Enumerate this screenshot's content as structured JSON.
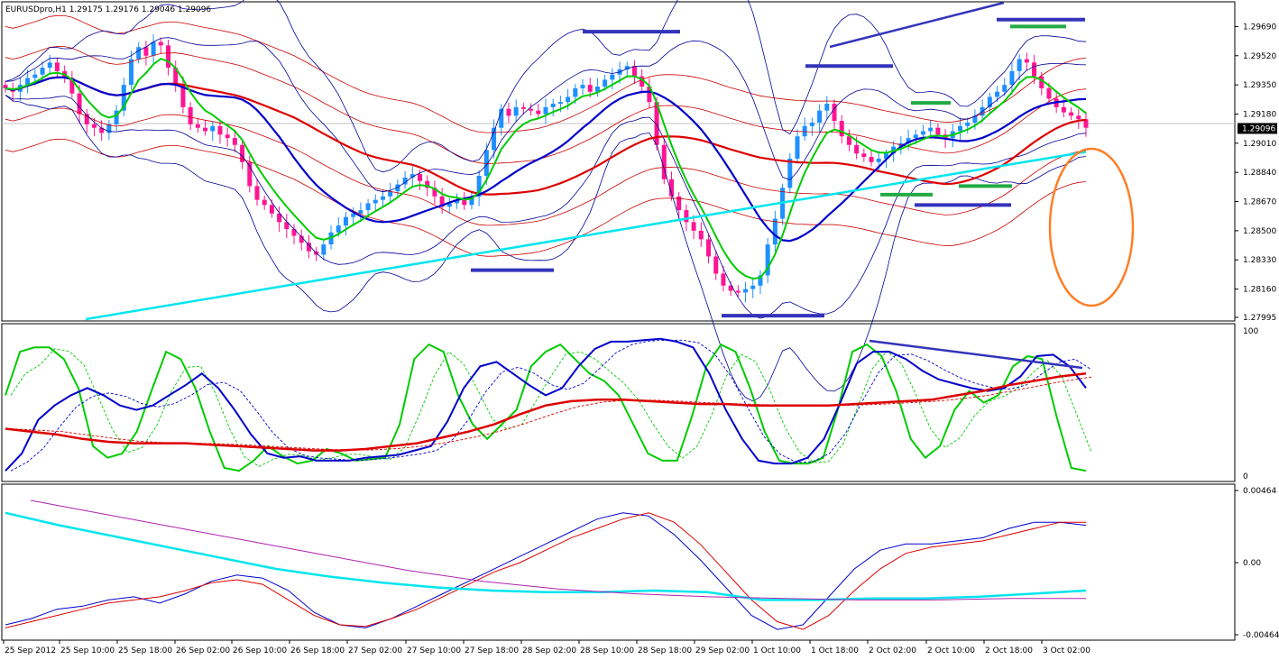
{
  "window": {
    "symbol_header": "EURUSDpro,H1  1.29175 1.29176 1.29046 1.29096"
  },
  "chart_data": [
    {
      "type": "candlestick",
      "panel": "main",
      "ylim": [
        1.27995,
        1.2975
      ],
      "y_ticks": [
        "1.29690",
        "1.29520",
        "1.29350",
        "1.29180",
        "1.29010",
        "1.28840",
        "1.28670",
        "1.28500",
        "1.28330",
        "1.28160",
        "1.27995"
      ],
      "current_price": "1.29096",
      "colors": {
        "bull": "#1e90ff",
        "bear": "#ff1493",
        "ema_fast": "#00cc00",
        "ema_mid": "#0000cc",
        "ema_slow": "#dd0000",
        "trend": "#00e5ee",
        "env": "#cc0000",
        "bands": "#000099",
        "annot_blue": "#3333bb",
        "annot_green": "#22aa44",
        "ellipse": "#ff7f27"
      },
      "closes": [
        1.2933,
        1.2931,
        1.2935,
        1.2939,
        1.2941,
        1.2945,
        1.2948,
        1.2943,
        1.2939,
        1.293,
        1.2918,
        1.2912,
        1.291,
        1.2907,
        1.2912,
        1.292,
        1.2935,
        1.295,
        1.2957,
        1.2952,
        1.296,
        1.2958,
        1.2945,
        1.2935,
        1.2922,
        1.2912,
        1.291,
        1.2908,
        1.2911,
        1.2906,
        1.2904,
        1.29,
        1.289,
        1.2876,
        1.2868,
        1.2865,
        1.286,
        1.2855,
        1.2851,
        1.2847,
        1.2843,
        1.2838,
        1.2836,
        1.2842,
        1.2849,
        1.2853,
        1.2858,
        1.286,
        1.2862,
        1.2866,
        1.2868,
        1.287,
        1.2873,
        1.2877,
        1.2881,
        1.2883,
        1.2879,
        1.2875,
        1.287,
        1.2864,
        1.2866,
        1.2868,
        1.2865,
        1.287,
        1.2882,
        1.2897,
        1.291,
        1.2921,
        1.2917,
        1.2922,
        1.2921,
        1.292,
        1.2918,
        1.2922,
        1.2924,
        1.2925,
        1.2928,
        1.2933,
        1.2935,
        1.2931,
        1.2934,
        1.2938,
        1.2941,
        1.2944,
        1.2946,
        1.294,
        1.2934,
        1.2925,
        1.29,
        1.288,
        1.287,
        1.2862,
        1.2855,
        1.285,
        1.2845,
        1.2835,
        1.2825,
        1.2818,
        1.2815,
        1.2814,
        1.2816,
        1.2818,
        1.2824,
        1.2842,
        1.2857,
        1.2875,
        1.2892,
        1.2905,
        1.2911,
        1.2913,
        1.292,
        1.2924,
        1.2914,
        1.2905,
        1.29,
        1.2895,
        1.2893,
        1.289,
        1.2892,
        1.2895,
        1.2899,
        1.2901,
        1.2904,
        1.2906,
        1.2908,
        1.291,
        1.2906,
        1.2904,
        1.2908,
        1.2911,
        1.2913,
        1.2917,
        1.2922,
        1.2928,
        1.2931,
        1.2935,
        1.2943,
        1.295,
        1.2948,
        1.294,
        1.2933,
        1.2927,
        1.2922,
        1.2919,
        1.2917,
        1.2915,
        1.291
      ],
      "x_labels": [
        "25 Sep 2012",
        "25 Sep 10:00",
        "25 Sep 18:00",
        "26 Sep 02:00",
        "26 Sep 10:00",
        "26 Sep 18:00",
        "27 Sep 02:00",
        "27 Sep 10:00",
        "27 Sep 18:00",
        "28 Sep 02:00",
        "28 Sep 10:00",
        "28 Sep 18:00",
        "29 Sep 02:00",
        "1 Oct 10:00",
        "1 Oct 18:00",
        "2 Oct 02:00",
        "2 Oct 10:00",
        "2 Oct 18:00",
        "3 Oct 02:00"
      ]
    },
    {
      "type": "line",
      "panel": "stochastic",
      "ylim": [
        0,
        100
      ],
      "y_ticks": [
        "100",
        "0"
      ],
      "series": [
        {
          "color": "#00cc00",
          "values": [
            55,
            85,
            88,
            88,
            80,
            60,
            20,
            12,
            15,
            30,
            58,
            85,
            80,
            60,
            30,
            5,
            3,
            10,
            20,
            13,
            8,
            10,
            18,
            15,
            10,
            11,
            12,
            35,
            80,
            90,
            85,
            55,
            35,
            25,
            35,
            45,
            75,
            85,
            90,
            80,
            70,
            65,
            55,
            35,
            15,
            10,
            10,
            40,
            75,
            90,
            85,
            60,
            30,
            10,
            8,
            8,
            12,
            45,
            85,
            90,
            82,
            58,
            25,
            12,
            20,
            45,
            58,
            50,
            55,
            75,
            82,
            80,
            40,
            5,
            3
          ]
        },
        {
          "color": "#0000cc",
          "values": [
            3,
            15,
            38,
            48,
            55,
            60,
            55,
            48,
            45,
            48,
            55,
            62,
            70,
            60,
            45,
            28,
            15,
            12,
            13,
            10,
            10,
            10,
            12,
            13,
            14,
            17,
            20,
            37,
            60,
            75,
            78,
            70,
            62,
            55,
            60,
            75,
            87,
            92,
            92,
            93,
            94,
            92,
            88,
            70,
            45,
            25,
            10,
            8,
            8,
            12,
            25,
            50,
            77,
            85,
            85,
            80,
            72,
            66,
            63,
            60,
            58,
            60,
            68,
            82,
            83,
            75,
            60
          ]
        },
        {
          "color": "#dd0000",
          "values": [
            32,
            30,
            28,
            25,
            23,
            22,
            22,
            22,
            21,
            20,
            19,
            18,
            17,
            17,
            18,
            20,
            22,
            26,
            30,
            35,
            42,
            48,
            51,
            52,
            52,
            51,
            50,
            49,
            49,
            48,
            48,
            48,
            48,
            49,
            50,
            51,
            52,
            55,
            58,
            62,
            65,
            68,
            70
          ]
        }
      ]
    },
    {
      "type": "line",
      "panel": "macd",
      "ylim": [
        -0.00464,
        0.00464
      ],
      "y_ticks": [
        "0.00464",
        "0.00",
        "-0.00464"
      ],
      "series": [
        {
          "color": "#0000cc",
          "values": [
            -0.004,
            -0.0036,
            -0.003,
            -0.0028,
            -0.0024,
            -0.0022,
            -0.0026,
            -0.002,
            -0.0012,
            -0.0008,
            -0.001,
            -0.0018,
            -0.0032,
            -0.004,
            -0.0042,
            -0.0036,
            -0.0028,
            -0.002,
            -0.0012,
            -0.0004,
            0.0004,
            0.0012,
            0.002,
            0.0028,
            0.0032,
            0.003,
            0.0018,
            0.0002,
            -0.0016,
            -0.0034,
            -0.0043,
            -0.004,
            -0.0022,
            -0.0004,
            0.0008,
            0.0012,
            0.0012,
            0.0014,
            0.0016,
            0.0022,
            0.0026,
            0.0026,
            0.0024
          ]
        },
        {
          "color": "#dd0000",
          "values": [
            -0.0042,
            -0.0038,
            -0.0034,
            -0.003,
            -0.0026,
            -0.0024,
            -0.0022,
            -0.0018,
            -0.0013,
            -0.0011,
            -0.0014,
            -0.0024,
            -0.0034,
            -0.004,
            -0.0041,
            -0.0036,
            -0.003,
            -0.0022,
            -0.0014,
            -0.0006,
            0.0,
            0.0008,
            0.0016,
            0.0022,
            0.0028,
            0.0032,
            0.0026,
            0.0012,
            -0.0006,
            -0.0024,
            -0.0038,
            -0.0043,
            -0.0034,
            -0.0018,
            -0.0004,
            0.0006,
            0.001,
            0.0012,
            0.0014,
            0.0018,
            0.0022,
            0.0026,
            0.0026
          ]
        },
        {
          "color": "#00e5ee",
          "values": [
            0.0032,
            0.0024,
            0.0017,
            0.001,
            0.0003,
            -0.0004,
            -0.0009,
            -0.0013,
            -0.0016,
            -0.0018,
            -0.0019,
            -0.0019,
            -0.0018,
            -0.0019,
            -0.0024,
            -0.0024,
            -0.0023,
            -0.0023,
            -0.0022,
            -0.002,
            -0.0018
          ]
        },
        {
          "color": "#b020b0",
          "values": [
            0.004,
            0.0031,
            0.0022,
            0.0013,
            0.0004,
            -0.0005,
            -0.0012,
            -0.0017,
            -0.002,
            -0.0022,
            -0.0023,
            -0.0024,
            -0.0024,
            -0.0023,
            -0.0023
          ]
        }
      ]
    }
  ]
}
